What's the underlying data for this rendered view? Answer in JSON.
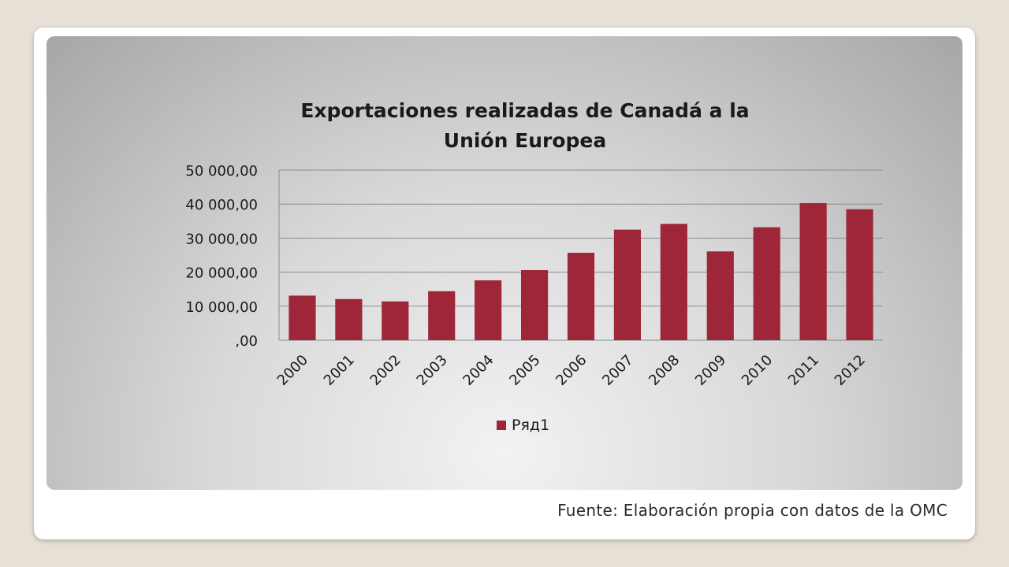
{
  "colors": {
    "bar": "#9e2638",
    "grid": "#8c8c8c",
    "text": "#1a1a1a"
  },
  "chart_data": {
    "type": "bar",
    "title_lines": [
      "Exportaciones realizadas de Canadá a la",
      "Unión Europea"
    ],
    "categories": [
      "2000",
      "2001",
      "2002",
      "2003",
      "2004",
      "2005",
      "2006",
      "2007",
      "2008",
      "2009",
      "2010",
      "2011",
      "2012"
    ],
    "series": [
      {
        "name": "Ряд1",
        "values": [
          13100,
          12100,
          11400,
          14400,
          17600,
          20600,
          25700,
          32500,
          34200,
          26100,
          33200,
          40300,
          38500
        ]
      }
    ],
    "yticks": [
      ",00",
      "10 000,00",
      "20 000,00",
      "30 000,00",
      "40 000,00",
      "50 000,00"
    ],
    "ylim": [
      0,
      50000
    ],
    "grid": true,
    "legend_position": "bottom"
  },
  "footer": {
    "source": "Fuente: Elaboración propia con datos de la OMC"
  }
}
